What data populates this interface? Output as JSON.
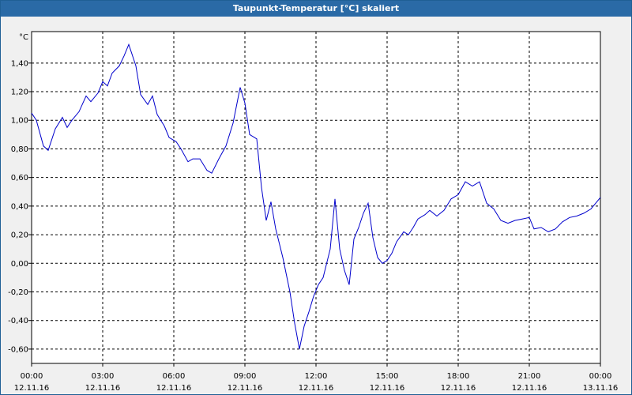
{
  "window": {
    "title": "Taupunkt-Temperatur [°C] skaliert"
  },
  "chart_data": {
    "type": "line",
    "title": "Taupunkt-Temperatur [°C] skaliert",
    "ylabel": "°C",
    "xlabel": "",
    "ylim": [
      -0.7,
      1.62
    ],
    "xlim": [
      0,
      24
    ],
    "grid": true,
    "yticks": [
      {
        "value": 1.4,
        "label": "1,40"
      },
      {
        "value": 1.2,
        "label": "1,20"
      },
      {
        "value": 1.0,
        "label": "1,00"
      },
      {
        "value": 0.8,
        "label": "0,80"
      },
      {
        "value": 0.6,
        "label": "0,60"
      },
      {
        "value": 0.4,
        "label": "0,40"
      },
      {
        "value": 0.2,
        "label": "0,20"
      },
      {
        "value": 0.0,
        "label": "0,00"
      },
      {
        "value": -0.2,
        "label": "-0,20"
      },
      {
        "value": -0.4,
        "label": "-0,40"
      },
      {
        "value": -0.6,
        "label": "-0,60"
      }
    ],
    "xticks": [
      {
        "value": 0,
        "time": "00:00",
        "date": "12.11.16"
      },
      {
        "value": 3,
        "time": "03:00",
        "date": "12.11.16"
      },
      {
        "value": 6,
        "time": "06:00",
        "date": "12.11.16"
      },
      {
        "value": 9,
        "time": "09:00",
        "date": "12.11.16"
      },
      {
        "value": 12,
        "time": "12:00",
        "date": "12.11.16"
      },
      {
        "value": 15,
        "time": "15:00",
        "date": "12.11.16"
      },
      {
        "value": 18,
        "time": "18:00",
        "date": "12.11.16"
      },
      {
        "value": 21,
        "time": "21:00",
        "date": "12.11.16"
      },
      {
        "value": 24,
        "time": "00:00",
        "date": "13.11.16"
      }
    ],
    "series": [
      {
        "color": "#0000cc",
        "x": [
          0.0,
          0.2,
          0.5,
          0.7,
          1.0,
          1.3,
          1.5,
          1.7,
          2.0,
          2.3,
          2.5,
          2.8,
          3.0,
          3.2,
          3.4,
          3.7,
          3.9,
          4.1,
          4.4,
          4.6,
          4.9,
          5.1,
          5.3,
          5.6,
          5.8,
          6.1,
          6.3,
          6.6,
          6.8,
          7.1,
          7.4,
          7.6,
          7.9,
          8.2,
          8.5,
          8.8,
          9.0,
          9.2,
          9.5,
          9.7,
          9.9,
          10.1,
          10.3,
          10.6,
          10.9,
          11.1,
          11.3,
          11.5,
          11.7,
          11.9,
          12.1,
          12.3,
          12.6,
          12.8,
          13.0,
          13.2,
          13.4,
          13.6,
          13.8,
          14.0,
          14.2,
          14.4,
          14.6,
          14.8,
          15.0,
          15.2,
          15.4,
          15.7,
          15.9,
          16.1,
          16.3,
          16.6,
          16.8,
          17.1,
          17.4,
          17.7,
          18.0,
          18.3,
          18.6,
          18.9,
          19.2,
          19.5,
          19.8,
          20.1,
          20.4,
          20.7,
          21.0,
          21.2,
          21.5,
          21.8,
          22.1,
          22.4,
          22.7,
          23.0,
          23.3,
          23.6,
          24.0
        ],
        "values": [
          1.05,
          1.0,
          0.82,
          0.79,
          0.94,
          1.02,
          0.95,
          1.0,
          1.06,
          1.17,
          1.13,
          1.19,
          1.27,
          1.24,
          1.33,
          1.38,
          1.45,
          1.53,
          1.38,
          1.18,
          1.11,
          1.17,
          1.04,
          0.96,
          0.88,
          0.85,
          0.8,
          0.71,
          0.73,
          0.73,
          0.65,
          0.63,
          0.73,
          0.82,
          0.98,
          1.23,
          1.12,
          0.9,
          0.87,
          0.53,
          0.3,
          0.43,
          0.24,
          0.04,
          -0.2,
          -0.42,
          -0.6,
          -0.44,
          -0.34,
          -0.23,
          -0.15,
          -0.1,
          0.1,
          0.45,
          0.1,
          -0.05,
          -0.15,
          0.17,
          0.25,
          0.35,
          0.42,
          0.18,
          0.04,
          0.0,
          0.02,
          0.07,
          0.15,
          0.22,
          0.2,
          0.25,
          0.31,
          0.34,
          0.37,
          0.33,
          0.37,
          0.45,
          0.48,
          0.57,
          0.54,
          0.57,
          0.42,
          0.38,
          0.3,
          0.28,
          0.3,
          0.31,
          0.32,
          0.24,
          0.25,
          0.22,
          0.24,
          0.29,
          0.32,
          0.33,
          0.35,
          0.38,
          0.46
        ]
      }
    ]
  }
}
